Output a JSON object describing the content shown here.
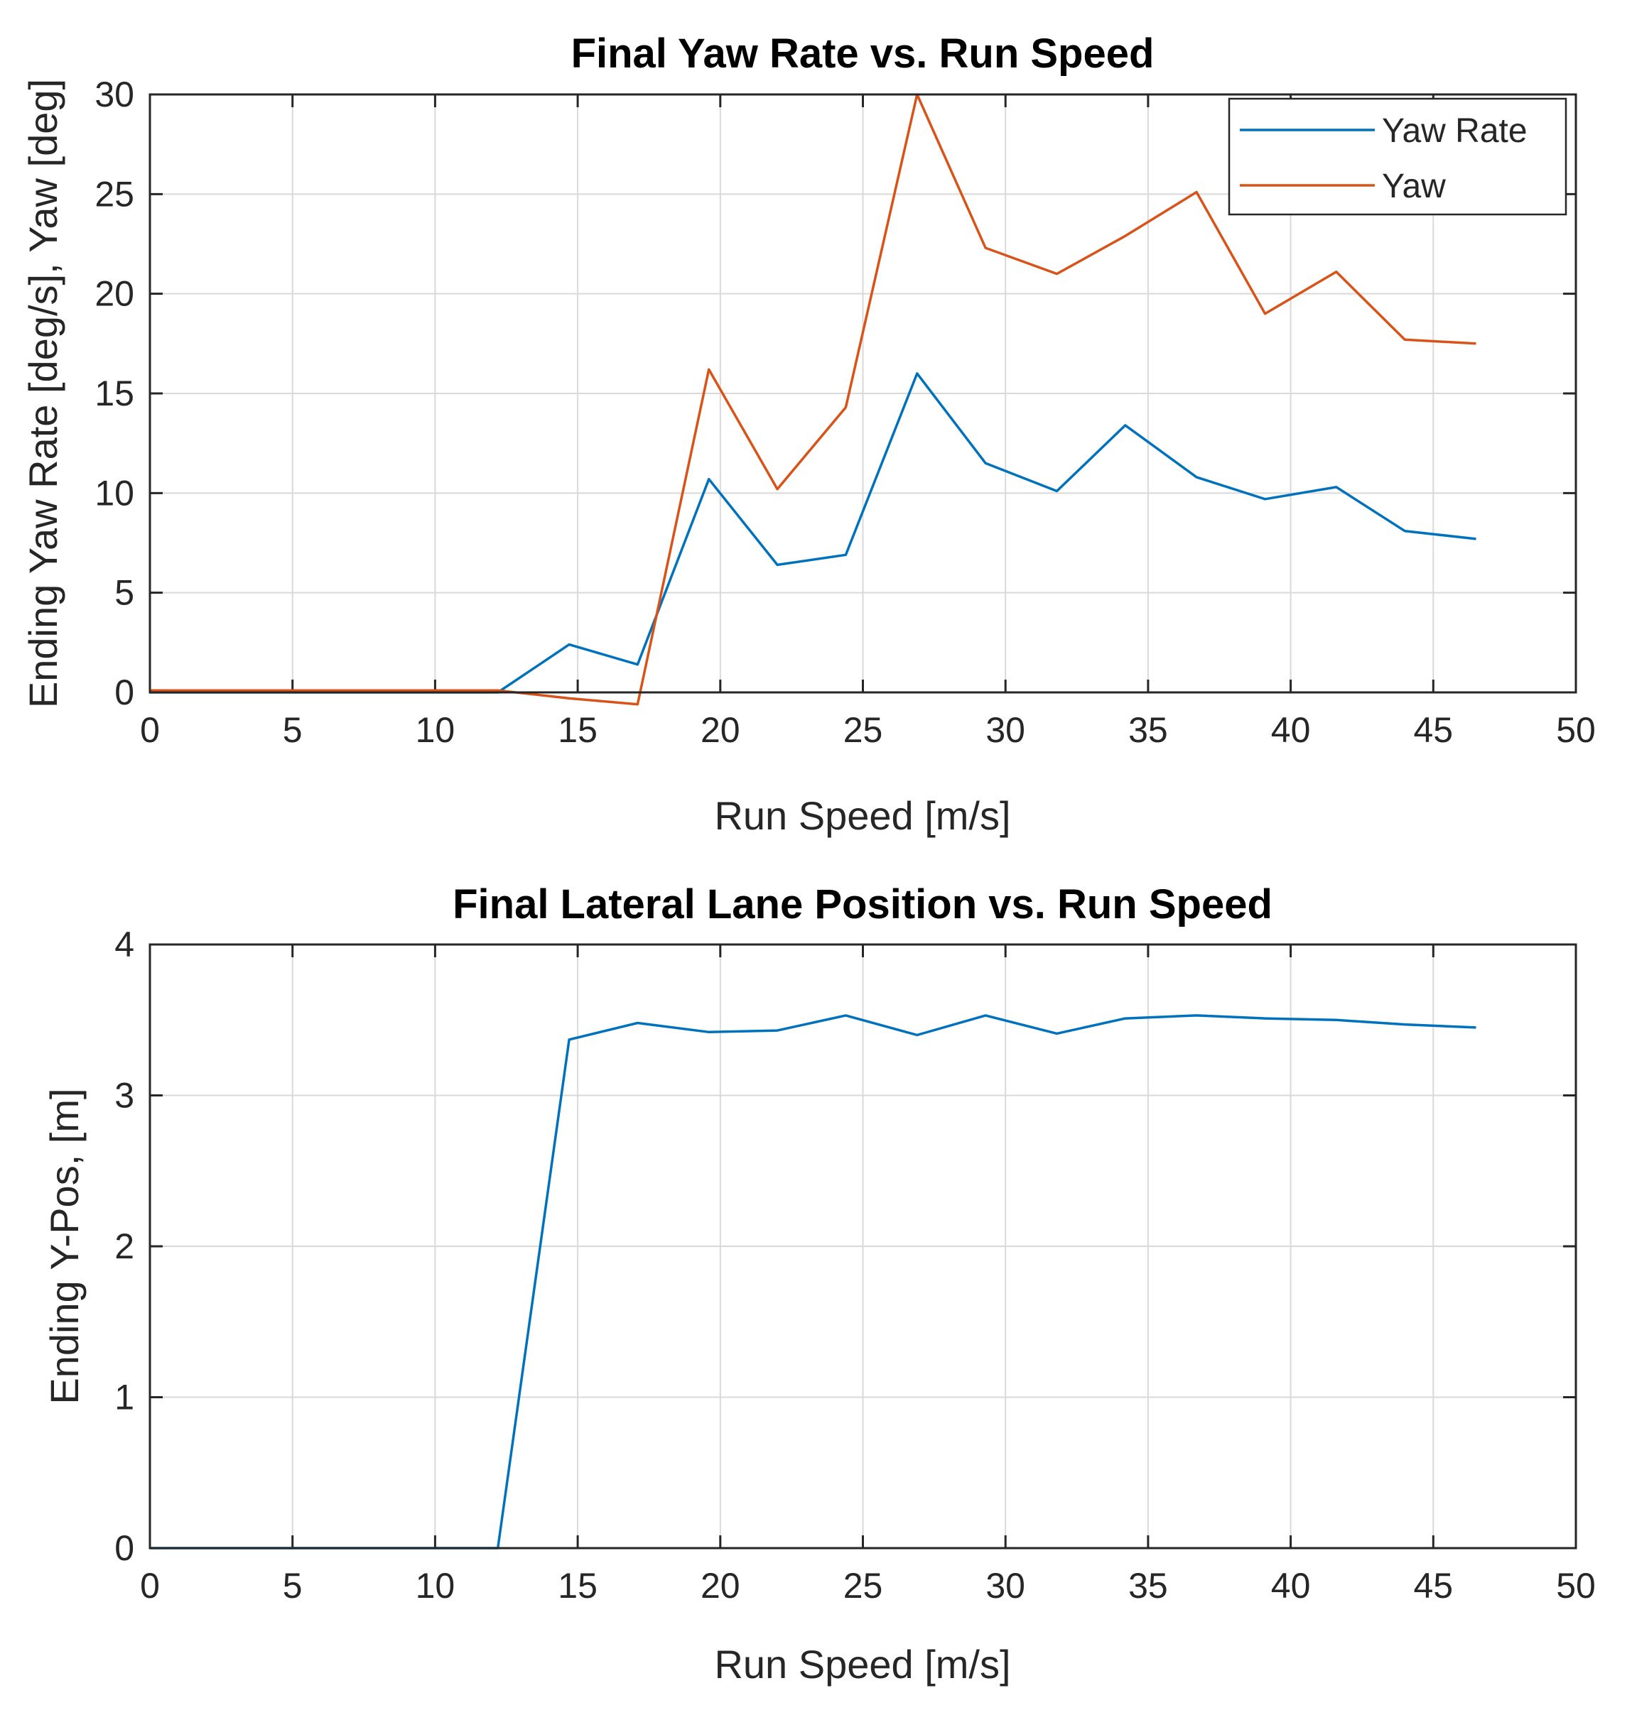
{
  "chart_data": [
    {
      "id": "top",
      "type": "line",
      "title": "Final Yaw Rate vs. Run Speed",
      "xlabel": "Run Speed [m/s]",
      "ylabel": "Ending Yaw Rate [deg/s],  Yaw [deg]",
      "xlim": [
        0,
        50
      ],
      "ylim": [
        0,
        30
      ],
      "xticks": [
        0,
        5,
        10,
        15,
        20,
        25,
        30,
        35,
        40,
        45,
        50
      ],
      "yticks": [
        0,
        5,
        10,
        15,
        20,
        25,
        30
      ],
      "grid": true,
      "legend": "top-right",
      "series": [
        {
          "name": "Yaw Rate",
          "color": "#0072BD",
          "x": [
            0,
            2.4,
            4.9,
            7.3,
            9.8,
            12.2,
            14.7,
            17.1,
            19.6,
            22.0,
            24.4,
            26.9,
            29.3,
            31.8,
            34.2,
            36.7,
            39.1,
            41.6,
            44.0,
            46.5
          ],
          "y": [
            0,
            0,
            0,
            0,
            0,
            0,
            2.4,
            1.4,
            10.7,
            6.4,
            6.9,
            16.0,
            11.5,
            10.1,
            13.4,
            10.8,
            9.7,
            10.3,
            8.1,
            7.7
          ]
        },
        {
          "name": "Yaw",
          "color": "#D95319",
          "x": [
            0,
            2.4,
            4.9,
            7.3,
            9.8,
            12.2,
            14.7,
            17.1,
            19.6,
            22.0,
            24.4,
            26.9,
            29.3,
            31.8,
            34.2,
            36.7,
            39.1,
            41.6,
            44.0,
            46.5
          ],
          "y": [
            0.1,
            0.1,
            0.1,
            0.1,
            0.1,
            0.1,
            -0.3,
            -0.6,
            16.2,
            10.2,
            14.3,
            30.0,
            22.3,
            21.0,
            22.9,
            25.1,
            19.0,
            21.1,
            17.7,
            17.5
          ]
        }
      ]
    },
    {
      "id": "bottom",
      "type": "line",
      "title": "Final Lateral Lane Position vs. Run Speed",
      "xlabel": "Run Speed [m/s]",
      "ylabel": "Ending Y-Pos, [m]",
      "xlim": [
        0,
        50
      ],
      "ylim": [
        0,
        4
      ],
      "xticks": [
        0,
        5,
        10,
        15,
        20,
        25,
        30,
        35,
        40,
        45,
        50
      ],
      "yticks": [
        0,
        1,
        2,
        3,
        4
      ],
      "grid": true,
      "legend": "none",
      "series": [
        {
          "name": "Y-Pos",
          "color": "#0072BD",
          "x": [
            0,
            2.4,
            4.9,
            7.3,
            9.8,
            12.2,
            14.7,
            17.1,
            19.6,
            22.0,
            24.4,
            26.9,
            29.3,
            31.8,
            34.2,
            36.7,
            39.1,
            41.6,
            44.0,
            46.5
          ],
          "y": [
            0,
            0,
            0,
            0,
            0,
            0,
            3.37,
            3.48,
            3.42,
            3.43,
            3.53,
            3.4,
            3.53,
            3.41,
            3.51,
            3.53,
            3.51,
            3.5,
            3.47,
            3.45
          ]
        }
      ]
    }
  ]
}
